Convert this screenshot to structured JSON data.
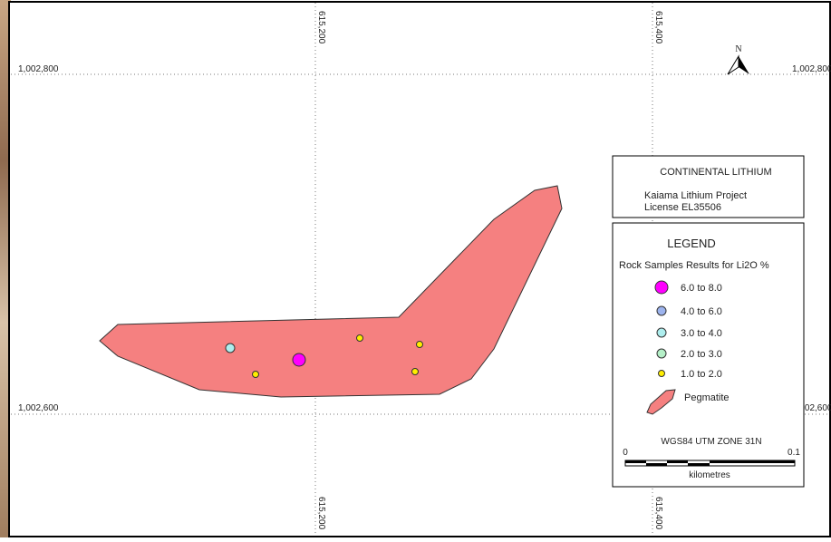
{
  "grid_labels": {
    "northing": [
      "1,002,800",
      "1,002,600"
    ],
    "easting": [
      "615,200",
      "615,400"
    ]
  },
  "north_label": "N",
  "title_box": {
    "company": "CONTINENTAL LITHIUM",
    "project": "Kaiama Lithium Project",
    "license": "License EL35506"
  },
  "legend": {
    "title": "LEGEND",
    "subtitle": "Rock Samples Results for Li2O %",
    "items": [
      "6.0 to 8.0",
      "4.0 to 6.0",
      "3.0 to 4.0",
      "2.0 to 3.0",
      "1.0 to 2.0",
      "Pegmatite"
    ]
  },
  "projection": "WGS84 UTM ZONE 31N",
  "scale": {
    "start": "0",
    "end": "0.1",
    "unit": "kilometres"
  }
}
